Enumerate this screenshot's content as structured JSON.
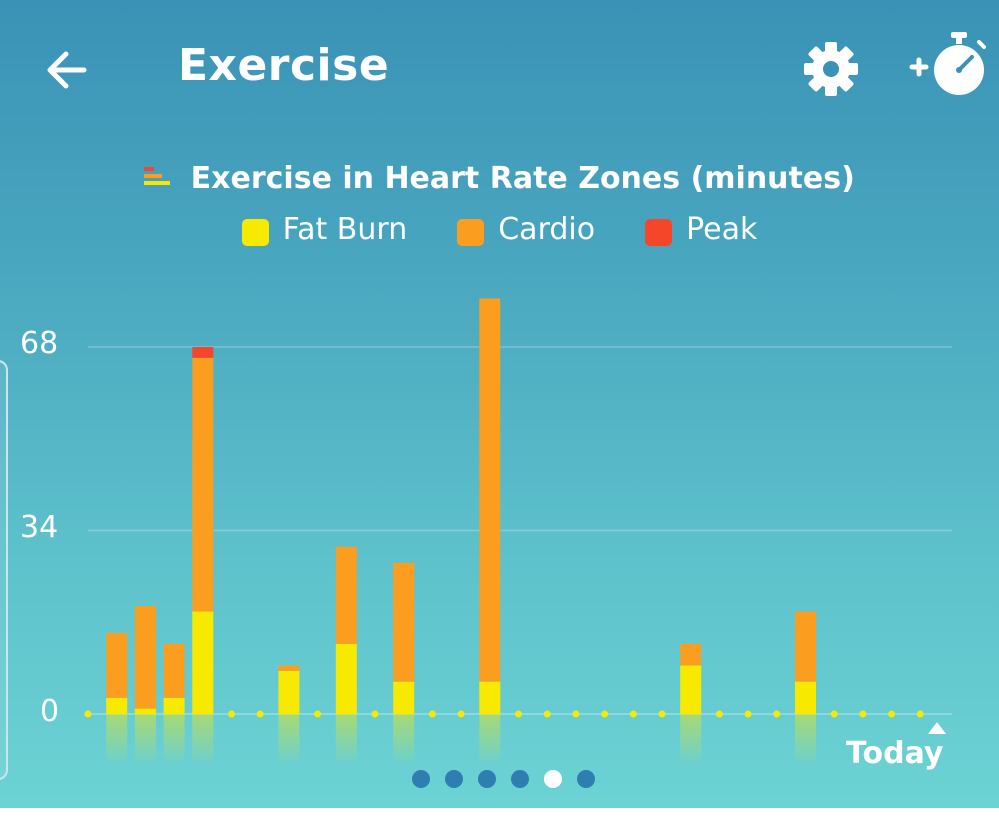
{
  "header": {
    "title": "Exercise",
    "back_icon": "arrow-left-icon",
    "settings_icon": "gear-icon",
    "add_icon": "stopwatch-plus-icon"
  },
  "chart_title": "Exercise in Heart Rate Zones (minutes)",
  "legend": [
    {
      "label": "Fat Burn",
      "color": "#f7ea00"
    },
    {
      "label": "Cardio",
      "color": "#fb9d1e"
    },
    {
      "label": "Peak",
      "color": "#f6462a"
    }
  ],
  "chart_data": {
    "type": "bar",
    "stacked": true,
    "title": "Exercise in Heart Rate Zones (minutes)",
    "ylim": [
      0,
      68
    ],
    "y_ticks": [
      "68",
      "34",
      "0"
    ],
    "x_end_label": "Today",
    "days": 30,
    "series": [
      {
        "name": "Fat Burn",
        "color": "#f7ea00",
        "values": [
          0,
          3,
          1,
          3,
          19,
          0,
          0,
          8,
          0,
          13,
          0,
          6,
          0,
          0,
          6,
          0,
          0,
          0,
          0,
          0,
          0,
          9,
          0,
          0,
          0,
          6,
          0,
          0,
          0,
          0
        ]
      },
      {
        "name": "Cardio",
        "color": "#fb9d1e",
        "values": [
          0,
          12,
          19,
          10,
          47,
          0,
          0,
          1,
          0,
          18,
          0,
          22,
          0,
          0,
          71,
          0,
          0,
          0,
          0,
          0,
          0,
          4,
          0,
          0,
          0,
          13,
          0,
          0,
          0,
          0
        ]
      },
      {
        "name": "Peak",
        "color": "#f6462a",
        "values": [
          0,
          0,
          0,
          0,
          2,
          0,
          0,
          0,
          0,
          0,
          0,
          0,
          0,
          0,
          0,
          0,
          0,
          0,
          0,
          0,
          0,
          0,
          0,
          0,
          0,
          0,
          0,
          0,
          0,
          0
        ]
      }
    ]
  },
  "pager": {
    "count": 6,
    "active_index": 4
  }
}
